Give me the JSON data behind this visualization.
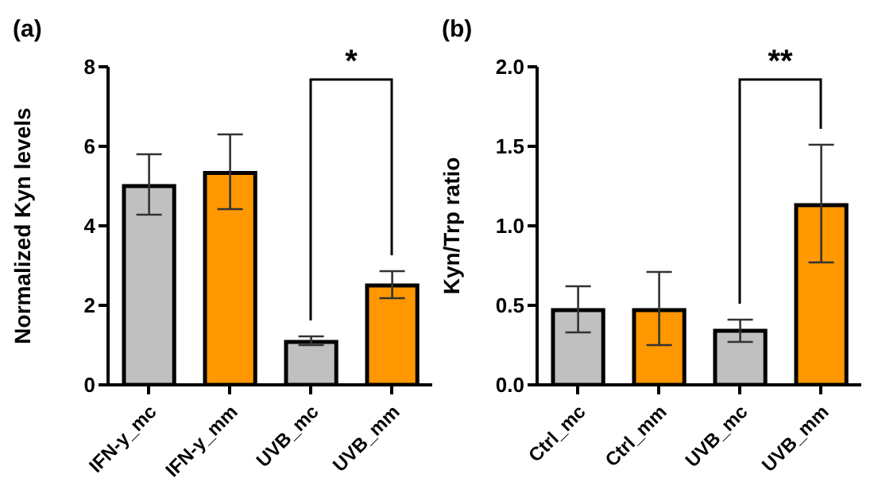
{
  "chart_data": [
    {
      "type": "bar",
      "title": "(a)",
      "ylabel": "Normalized Kyn levels",
      "categories": [
        "IFN-y_mc",
        "IFN-y_mm",
        "UVB_mc",
        "UVB_mm"
      ],
      "values": [
        5.0,
        5.33,
        1.08,
        2.5
      ],
      "errors": [
        [
          4.28,
          5.8
        ],
        [
          4.42,
          6.3
        ],
        [
          1.0,
          1.22
        ],
        [
          2.18,
          2.86
        ]
      ],
      "colors": [
        "#c0c0c0",
        "#ff9800",
        "#c0c0c0",
        "#ff9800"
      ],
      "ylim": [
        0,
        8
      ],
      "yticks": [
        0,
        2,
        4,
        6,
        8
      ],
      "grid": false,
      "annotations": [
        "*"
      ]
    },
    {
      "type": "bar",
      "title": "(b)",
      "ylabel": "Kyn/Trp ratio",
      "categories": [
        "Ctrl_mc",
        "Ctrl_mm",
        "UVB_mc",
        "UVB_mm"
      ],
      "values": [
        0.47,
        0.47,
        0.34,
        1.13
      ],
      "errors": [
        [
          0.33,
          0.62
        ],
        [
          0.25,
          0.71
        ],
        [
          0.27,
          0.41
        ],
        [
          0.77,
          1.51
        ]
      ],
      "colors": [
        "#c0c0c0",
        "#ff9800",
        "#c0c0c0",
        "#ff9800"
      ],
      "ylim": [
        0,
        2.0
      ],
      "yticks": [
        {
          "value": 0,
          "label": "0.0"
        },
        {
          "value": 0.5,
          "label": "0.5"
        },
        {
          "value": 1.0,
          "label": "1.0"
        },
        {
          "value": 1.5,
          "label": "1.5"
        },
        {
          "value": 2.0,
          "label": "2.0"
        }
      ],
      "grid": false,
      "annotations": [
        "**"
      ]
    }
  ]
}
